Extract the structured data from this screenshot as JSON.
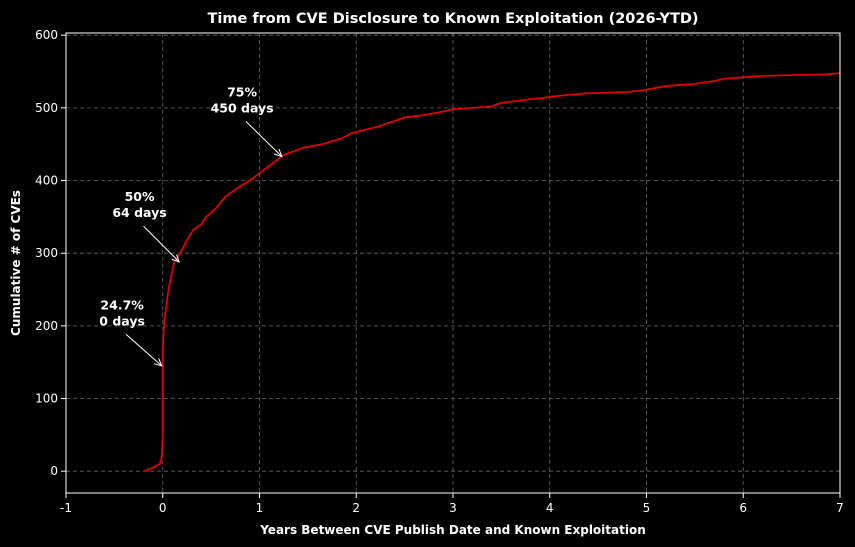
{
  "chart_data": {
    "type": "line",
    "title": "Time from CVE Disclosure to Known Exploitation (2026-YTD)",
    "xlabel": "Years Between CVE Publish Date and Known Exploitation",
    "ylabel": "Cumulative # of CVEs",
    "xlim": [
      -1,
      7
    ],
    "ylim": [
      -30,
      603
    ],
    "xticks": [
      -1,
      0,
      1,
      2,
      3,
      4,
      5,
      6,
      7
    ],
    "yticks": [
      0,
      100,
      200,
      300,
      400,
      500,
      600
    ],
    "grid": true,
    "line_color": "#e00000",
    "background": "#000000",
    "series": [
      {
        "x": [
          -0.19,
          -0.15,
          -0.1,
          -0.06,
          -0.03,
          -0.01,
          0.0,
          0.0,
          0.0,
          0.0,
          0.005,
          0.01,
          0.02,
          0.04,
          0.06,
          0.09,
          0.12,
          0.18,
          0.25,
          0.32,
          0.4,
          0.45,
          0.55,
          0.65,
          0.8,
          0.9,
          1.0,
          1.1,
          1.25,
          1.45,
          1.65,
          1.85,
          1.95,
          2.1,
          2.25,
          2.3,
          2.4,
          2.5,
          2.7,
          2.9,
          3.0,
          3.2,
          3.4,
          3.5,
          3.7,
          3.8,
          3.9,
          4.0,
          4.2,
          4.4,
          4.6,
          4.8,
          4.9,
          5.0,
          5.2,
          5.5,
          5.7,
          5.8,
          6.0,
          6.2,
          6.5,
          6.85,
          7.0
        ],
        "y": [
          0,
          2,
          5,
          8,
          10,
          20,
          50,
          100,
          145,
          165,
          180,
          195,
          210,
          230,
          250,
          270,
          288,
          300,
          318,
          333,
          340,
          350,
          362,
          378,
          392,
          400,
          410,
          420,
          435,
          445,
          450,
          458,
          465,
          470,
          475,
          478,
          482,
          487,
          490,
          495,
          498,
          500,
          502,
          507,
          510,
          512,
          513,
          515,
          518,
          520,
          521,
          522,
          523,
          525,
          530,
          533,
          537,
          540,
          542,
          544,
          545,
          546,
          548
        ]
      }
    ],
    "annotations": [
      {
        "label_line1": "24.7%",
        "label_line2": "0 days",
        "text_x": -0.42,
        "text_y": 213,
        "point_x": -0.01,
        "point_y": 145
      },
      {
        "label_line1": "50%",
        "label_line2": "64 days",
        "text_x": -0.24,
        "text_y": 362,
        "point_x": 0.17,
        "point_y": 288
      },
      {
        "label_line1": "75%",
        "label_line2": "450 days",
        "text_x": 0.82,
        "text_y": 506,
        "point_x": 1.23,
        "point_y": 433
      }
    ]
  }
}
